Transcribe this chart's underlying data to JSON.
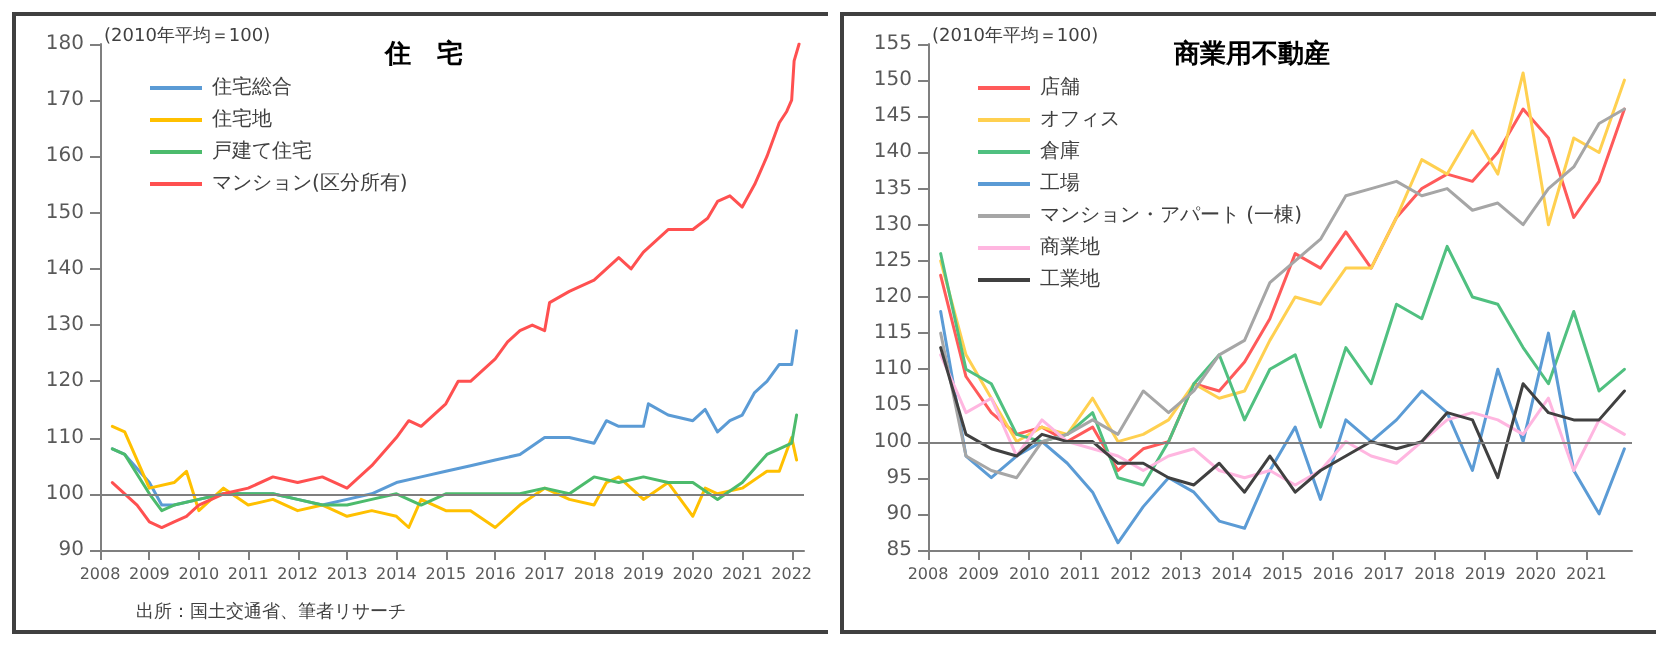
{
  "chart_data": [
    {
      "type": "line",
      "title": "住　宅",
      "annotations": [
        "(2010年平均＝100)",
        "出所：国土交通省、筆者リサーチ"
      ],
      "xlim": [
        2008,
        2022.25
      ],
      "xticks": [
        2008,
        2009,
        2010,
        2011,
        2012,
        2013,
        2014,
        2015,
        2016,
        2017,
        2018,
        2019,
        2020,
        2021,
        2022
      ],
      "ylim": [
        90,
        180
      ],
      "yticks": [
        90,
        100,
        110,
        120,
        130,
        140,
        150,
        160,
        170,
        180
      ],
      "grid": false,
      "legend": "top left",
      "marker": "none",
      "line_style": "solid",
      "ref_lines": [
        {
          "axis": "y",
          "value": 100,
          "color": "#7f7f7f"
        }
      ],
      "series": [
        {
          "name": "住宅総合",
          "color": "#5b9bd5",
          "x": [
            2008.25,
            2008.5,
            2009,
            2009.25,
            2009.5,
            2010,
            2010.5,
            2011,
            2011.5,
            2012,
            2012.5,
            2013,
            2013.5,
            2014,
            2014.5,
            2015,
            2015.5,
            2016,
            2016.5,
            2017,
            2017.5,
            2018,
            2018.25,
            2018.5,
            2019,
            2019.1,
            2019.5,
            2020,
            2020.25,
            2020.5,
            2020.75,
            2021,
            2021.25,
            2021.5,
            2021.75,
            2022,
            2022.1
          ],
          "values": [
            108,
            107,
            102,
            98,
            98,
            99,
            100,
            100,
            100,
            99,
            98,
            99,
            100,
            102,
            103,
            104,
            105,
            106,
            107,
            110,
            110,
            109,
            113,
            112,
            112,
            116,
            114,
            113,
            115,
            111,
            113,
            114,
            118,
            120,
            123,
            123,
            129
          ]
        },
        {
          "name": "住宅地",
          "color": "#ffc000",
          "x": [
            2008.25,
            2008.5,
            2009,
            2009.5,
            2009.75,
            2010,
            2010.5,
            2011,
            2011.5,
            2012,
            2012.5,
            2013,
            2013.5,
            2014,
            2014.25,
            2014.5,
            2015,
            2015.5,
            2016,
            2016.5,
            2017,
            2017.5,
            2018,
            2018.25,
            2018.5,
            2019,
            2019.5,
            2020,
            2020.25,
            2020.5,
            2021,
            2021.5,
            2021.75,
            2022,
            2022.1
          ],
          "values": [
            112,
            111,
            101,
            102,
            104,
            97,
            101,
            98,
            99,
            97,
            98,
            96,
            97,
            96,
            94,
            99,
            97,
            97,
            94,
            98,
            101,
            99,
            98,
            102,
            103,
            99,
            102,
            96,
            101,
            100,
            101,
            104,
            104,
            110,
            106
          ]
        },
        {
          "name": "戸建て住宅",
          "color": "#4cbb6c",
          "x": [
            2008.25,
            2008.5,
            2009,
            2009.25,
            2009.5,
            2010,
            2010.5,
            2011,
            2011.5,
            2012,
            2012.5,
            2013,
            2013.5,
            2014,
            2014.5,
            2015,
            2015.5,
            2016,
            2016.5,
            2017,
            2017.5,
            2018,
            2018.5,
            2019,
            2019.5,
            2020,
            2020.5,
            2021,
            2021.5,
            2021.75,
            2022,
            2022.1
          ],
          "values": [
            108,
            107,
            100,
            97,
            98,
            99,
            100,
            100,
            100,
            99,
            98,
            98,
            99,
            100,
            98,
            100,
            100,
            100,
            100,
            101,
            100,
            103,
            102,
            103,
            102,
            102,
            99,
            102,
            107,
            108,
            109,
            114
          ]
        },
        {
          "name": "マンション(区分所有)",
          "color": "#ff5050",
          "x": [
            2008.25,
            2008.5,
            2008.75,
            2009,
            2009.25,
            2009.5,
            2009.75,
            2010,
            2010.5,
            2011,
            2011.5,
            2012,
            2012.5,
            2013,
            2013.5,
            2014,
            2014.25,
            2014.5,
            2015,
            2015.25,
            2015.5,
            2016,
            2016.25,
            2016.5,
            2016.75,
            2017,
            2017.1,
            2017.5,
            2018,
            2018.5,
            2018.75,
            2019,
            2019.5,
            2020,
            2020.3,
            2020.5,
            2020.75,
            2021,
            2021.25,
            2021.5,
            2021.75,
            2021.9,
            2022,
            2022.05,
            2022.15
          ],
          "values": [
            102,
            100,
            98,
            95,
            94,
            95,
            96,
            98,
            100,
            101,
            103,
            102,
            103,
            101,
            105,
            110,
            113,
            112,
            116,
            120,
            120,
            124,
            127,
            129,
            130,
            129,
            134,
            136,
            138,
            142,
            140,
            143,
            147,
            147,
            149,
            152,
            153,
            151,
            155,
            160,
            166,
            168,
            170,
            177,
            180
          ]
        }
      ]
    },
    {
      "type": "line",
      "title": "商業用不動産",
      "annotations": [
        "(2010年平均＝100)"
      ],
      "xlim": [
        2008,
        2021.9
      ],
      "xticks": [
        2008,
        2009,
        2010,
        2011,
        2012,
        2013,
        2014,
        2015,
        2016,
        2017,
        2018,
        2019,
        2020,
        2021
      ],
      "ylim": [
        85,
        155
      ],
      "yticks": [
        85,
        90,
        95,
        100,
        105,
        110,
        115,
        120,
        125,
        130,
        135,
        140,
        145,
        150,
        155
      ],
      "grid": false,
      "legend": "top left",
      "marker": "none",
      "line_style": "solid",
      "ref_lines": [
        {
          "axis": "y",
          "value": 100,
          "color": "#7f7f7f"
        }
      ],
      "x": [
        2008.25,
        2008.75,
        2009.25,
        2009.75,
        2010.25,
        2010.75,
        2011.25,
        2011.75,
        2012.25,
        2012.75,
        2013.25,
        2013.75,
        2014.25,
        2014.75,
        2015.25,
        2015.75,
        2016.25,
        2016.75,
        2017.25,
        2017.75,
        2018.25,
        2018.75,
        2019.25,
        2019.75,
        2020.25,
        2020.75,
        2021.25,
        2021.75
      ],
      "series": [
        {
          "name": "店舗",
          "color": "#ff5a5a",
          "values": [
            123,
            109,
            104,
            101,
            102,
            100,
            102,
            96,
            99,
            100,
            108,
            107,
            111,
            117,
            126,
            124,
            129,
            124,
            131,
            135,
            137,
            136,
            140,
            146,
            142,
            131,
            136,
            146
          ]
        },
        {
          "name": "オフィス",
          "color": "#ffd050",
          "values": [
            125,
            112,
            106,
            100,
            102,
            101,
            106,
            100,
            101,
            103,
            108,
            106,
            107,
            114,
            120,
            119,
            124,
            124,
            131,
            139,
            137,
            143,
            137,
            151,
            130,
            142,
            140,
            150
          ]
        },
        {
          "name": "倉庫",
          "color": "#50c080",
          "values": [
            126,
            110,
            108,
            101,
            100,
            101,
            104,
            95,
            94,
            100,
            108,
            112,
            103,
            110,
            112,
            102,
            113,
            108,
            119,
            117,
            127,
            120,
            119,
            113,
            108,
            118,
            107,
            110
          ]
        },
        {
          "name": "工場",
          "color": "#5b9bd5",
          "values": [
            118,
            98,
            95,
            98,
            100,
            97,
            93,
            86,
            91,
            95,
            93,
            89,
            88,
            96,
            102,
            92,
            103,
            100,
            103,
            107,
            104,
            96,
            110,
            100,
            115,
            96,
            90,
            99
          ]
        },
        {
          "name": "マンション・アパート (一棟)",
          "color": "#a6a6a6",
          "values": [
            115,
            98,
            96,
            95,
            100,
            101,
            103,
            101,
            107,
            104,
            107,
            112,
            114,
            122,
            125,
            128,
            134,
            135,
            136,
            134,
            135,
            132,
            133,
            130,
            135,
            138,
            144,
            146
          ]
        },
        {
          "name": "商業地",
          "color": "#ffb6e0",
          "values": [
            112,
            104,
            106,
            98,
            103,
            100,
            99,
            98,
            96,
            98,
            99,
            96,
            95,
            96,
            94,
            96,
            100,
            98,
            97,
            100,
            103,
            104,
            103,
            101,
            106,
            96,
            103,
            101
          ]
        },
        {
          "name": "工業地",
          "color": "#404040",
          "values": [
            113,
            101,
            99,
            98,
            101,
            100,
            100,
            97,
            97,
            95,
            94,
            97,
            93,
            98,
            93,
            96,
            98,
            100,
            99,
            100,
            104,
            103,
            95,
            108,
            104,
            103,
            103,
            107
          ]
        }
      ]
    }
  ]
}
